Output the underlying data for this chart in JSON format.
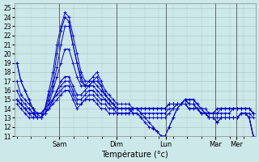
{
  "title": "",
  "xlabel": "Température (°c)",
  "ylabel": "",
  "background_color": "#cde8e8",
  "grid_color": "#aacccc",
  "line_color": "#0000cc",
  "ylim": [
    11,
    25
  ],
  "yticks": [
    11,
    12,
    13,
    14,
    15,
    16,
    17,
    18,
    19,
    20,
    21,
    22,
    23,
    24,
    25
  ],
  "day_positions": [
    0.18,
    0.42,
    0.63,
    0.84,
    0.93
  ],
  "day_labels": [
    "Sam",
    "Dim",
    "Lun",
    "Mar",
    "Mer"
  ],
  "num_points": 60,
  "series": [
    [
      19,
      17,
      16,
      15,
      14,
      13.5,
      13,
      14,
      16,
      18,
      21,
      23,
      24.5,
      24,
      22,
      20,
      18,
      17,
      17,
      17.5,
      18,
      17,
      16,
      15.5,
      15,
      14.5,
      14.5,
      14.5,
      14.5,
      14,
      14,
      13.5,
      13,
      12.5,
      12,
      11.5,
      11,
      11,
      12,
      13,
      14,
      14.5,
      15,
      15,
      15,
      14.5,
      14,
      13.5,
      13,
      13,
      12.5,
      13,
      13,
      13,
      13,
      13,
      13.5,
      13.5,
      13,
      11
    ],
    [
      19,
      17,
      16,
      15,
      14,
      13,
      13,
      14,
      15.5,
      17,
      20,
      22.5,
      24,
      23.5,
      21,
      19,
      17.5,
      16.5,
      16.5,
      17,
      17.5,
      16.5,
      15.5,
      15,
      14.5,
      14,
      14,
      14,
      14,
      13.5,
      13.5,
      13,
      12.5,
      12,
      11.8,
      11.5,
      11,
      11,
      12,
      13,
      14,
      14.5,
      15,
      15,
      15,
      14.5,
      14,
      13.5,
      13,
      13,
      12.5,
      13,
      13,
      13,
      13,
      13,
      13.5,
      13.5,
      13,
      11
    ],
    [
      17,
      15.5,
      15,
      14.5,
      14,
      13.5,
      13.5,
      14,
      15,
      16.5,
      18.5,
      21,
      23,
      23,
      21,
      19,
      17,
      16.5,
      16.5,
      17,
      17,
      16.5,
      15.5,
      15,
      14.5,
      14,
      14,
      14,
      14,
      13.5,
      13.5,
      13,
      13,
      13,
      13,
      13,
      13,
      13,
      13.5,
      14,
      14.5,
      14.5,
      15,
      14.5,
      14.5,
      14,
      13.5,
      13.5,
      13,
      13,
      13,
      13,
      13,
      13,
      13,
      13,
      13.5,
      13.5,
      13,
      11
    ],
    [
      16,
      15,
      14.5,
      14,
      13.5,
      13,
      13,
      13.5,
      14.5,
      16,
      17.5,
      19,
      20.5,
      20.5,
      19,
      17.5,
      16.5,
      16.5,
      17,
      17,
      16.5,
      16,
      15.5,
      15,
      14.5,
      14,
      14,
      14,
      14,
      14,
      14,
      13.5,
      13.5,
      13.5,
      13.5,
      13.5,
      13.5,
      13.5,
      14,
      14,
      14.5,
      14.5,
      15,
      14.5,
      14.5,
      14,
      13.5,
      13.5,
      13,
      13,
      13,
      13,
      13,
      13,
      13,
      13,
      13.5,
      13.5,
      13.5,
      13
    ],
    [
      15,
      14.5,
      14,
      14,
      13.5,
      13.5,
      13.5,
      14,
      14.5,
      15,
      16,
      17,
      17.5,
      17.5,
      16.5,
      15.5,
      15.5,
      16,
      16.5,
      16.5,
      16,
      15.5,
      15,
      14.5,
      14.5,
      14,
      14,
      14,
      14,
      14,
      14,
      14,
      14,
      14,
      14,
      14,
      14,
      14,
      14.5,
      14.5,
      14.5,
      14.5,
      15,
      14.5,
      14.5,
      14,
      14,
      14,
      13.5,
      13.5,
      13.5,
      14,
      14,
      14,
      14,
      14,
      14,
      14,
      14,
      13.5
    ],
    [
      15,
      14.5,
      14,
      13.5,
      13.5,
      13,
      13,
      13.5,
      14,
      15,
      16,
      16.5,
      17,
      17,
      16,
      15,
      15,
      15.5,
      16,
      16,
      15.5,
      15,
      15,
      14.5,
      14,
      14,
      14,
      14,
      14,
      14,
      14,
      14,
      14,
      14,
      14,
      14,
      14,
      14,
      14.5,
      14.5,
      14.5,
      14.5,
      14.5,
      14,
      14,
      14,
      13.5,
      13.5,
      13.5,
      13.5,
      13.5,
      13.5,
      13.5,
      13.5,
      14,
      14,
      14,
      14,
      14,
      13.5
    ],
    [
      15,
      14.5,
      14,
      13.5,
      13,
      13,
      13,
      13.5,
      14,
      15,
      15.5,
      16,
      16.5,
      16.5,
      15.5,
      14.5,
      14.5,
      15,
      15.5,
      15.5,
      15,
      14.5,
      14.5,
      14,
      14,
      13.5,
      13.5,
      13.5,
      13.5,
      14,
      14,
      14,
      14,
      14,
      14,
      14,
      14,
      14,
      14.5,
      14.5,
      14.5,
      14.5,
      14.5,
      14,
      14,
      14,
      13.5,
      13.5,
      13.5,
      13.5,
      14,
      14,
      14,
      14,
      14,
      14,
      14,
      14,
      14,
      13.5
    ],
    [
      14.5,
      14,
      13.5,
      13,
      13,
      13,
      13,
      13.5,
      14,
      14.5,
      15,
      15.5,
      16,
      16,
      15,
      14,
      14.5,
      15,
      15,
      15,
      14.5,
      14,
      14,
      13.5,
      13.5,
      13.5,
      13.5,
      13.5,
      13.5,
      14,
      14,
      14,
      14,
      14,
      14,
      14,
      14,
      14,
      14.5,
      14.5,
      14.5,
      14.5,
      14.5,
      14,
      14,
      14,
      13.5,
      13.5,
      13.5,
      13.5,
      14,
      14,
      14,
      14,
      14,
      14,
      14,
      14,
      14,
      13.5
    ]
  ]
}
